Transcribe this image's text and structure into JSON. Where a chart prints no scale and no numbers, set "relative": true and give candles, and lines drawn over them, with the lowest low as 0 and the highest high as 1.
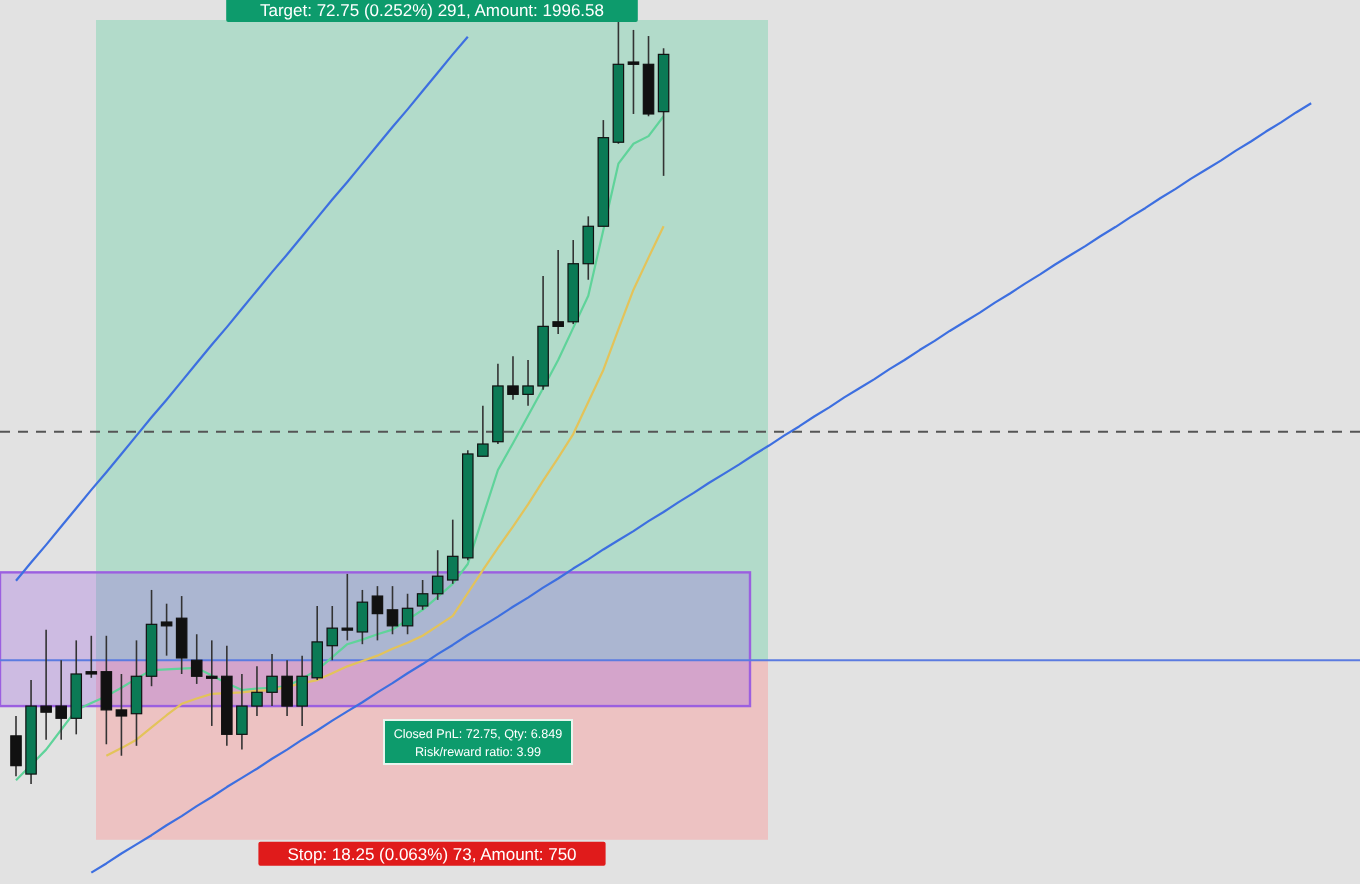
{
  "chart_data": {
    "type": "candlestick",
    "relative": true,
    "categories": [
      null,
      null,
      null,
      null,
      null,
      null,
      null,
      null,
      null,
      null,
      null,
      null,
      null,
      null,
      null,
      null,
      null,
      null,
      null,
      null,
      null,
      null,
      null,
      null,
      null,
      null,
      null,
      null,
      null,
      null,
      null,
      null,
      null,
      null,
      null,
      null,
      null,
      null,
      null,
      null,
      null,
      null,
      null,
      null,
      null,
      null,
      null,
      null,
      null,
      null,
      null,
      null,
      null,
      null,
      null,
      null,
      null,
      null,
      null,
      null,
      null,
      null,
      null,
      null,
      null,
      null,
      null,
      null,
      null,
      null,
      null,
      null,
      null,
      null,
      null,
      null,
      null,
      null,
      null,
      null,
      null,
      null,
      null,
      null,
      null,
      null,
      null,
      null,
      null,
      null
    ],
    "ohlc": [
      [
        0.063,
        0.089,
        0.01,
        0.024
      ],
      [
        0.013,
        0.136,
        0,
        0.102
      ],
      [
        0.102,
        0.202,
        0.058,
        0.094
      ],
      [
        0.102,
        0.162,
        0.058,
        0.086
      ],
      [
        0.086,
        0.188,
        0.065,
        0.144
      ],
      [
        0.147,
        0.194,
        0.139,
        0.144
      ],
      [
        0.147,
        0.194,
        0.052,
        0.097
      ],
      [
        0.097,
        0.144,
        0.037,
        0.089
      ],
      [
        0.092,
        0.188,
        0.05,
        0.141
      ],
      [
        0.141,
        0.254,
        0.128,
        0.209
      ],
      [
        0.212,
        0.236,
        0.168,
        0.207
      ],
      [
        0.217,
        0.246,
        0.144,
        0.165
      ],
      [
        0.162,
        0.196,
        0.131,
        0.141
      ],
      [
        0.141,
        0.188,
        0.076,
        0.139
      ],
      [
        0.141,
        0.181,
        0.05,
        0.065
      ],
      [
        0.065,
        0.144,
        0.045,
        0.102
      ],
      [
        0.102,
        0.154,
        0.089,
        0.12
      ],
      [
        0.12,
        0.17,
        0.102,
        0.141
      ],
      [
        0.141,
        0.162,
        0.089,
        0.102
      ],
      [
        0.102,
        0.168,
        0.076,
        0.141
      ],
      [
        0.139,
        0.233,
        0.136,
        0.186
      ],
      [
        0.181,
        0.233,
        0.162,
        0.204
      ],
      [
        0.204,
        0.275,
        0.188,
        0.202
      ],
      [
        0.199,
        0.254,
        0.183,
        0.238
      ],
      [
        0.246,
        0.259,
        0.188,
        0.223
      ],
      [
        0.228,
        0.259,
        0.196,
        0.207
      ],
      [
        0.207,
        0.249,
        0.196,
        0.23
      ],
      [
        0.233,
        0.267,
        0.228,
        0.249
      ],
      [
        0.249,
        0.306,
        0.241,
        0.272
      ],
      [
        0.267,
        0.346,
        0.262,
        0.298
      ],
      [
        0.296,
        0.437,
        0.293,
        0.432
      ],
      [
        0.429,
        0.495,
        0.429,
        0.445
      ],
      [
        0.448,
        0.55,
        0.445,
        0.521
      ],
      [
        0.521,
        0.56,
        0.503,
        0.51
      ],
      [
        0.51,
        0.555,
        0.495,
        0.521
      ],
      [
        0.521,
        0.665,
        0.516,
        0.599
      ],
      [
        0.605,
        0.699,
        0.589,
        0.599
      ],
      [
        0.605,
        0.712,
        0.602,
        0.681
      ],
      [
        0.681,
        0.743,
        0.66,
        0.73
      ],
      [
        0.73,
        0.869,
        0.73,
        0.846
      ],
      [
        0.84,
        1,
        0.838,
        0.942
      ],
      [
        0.945,
        0.987,
        0.877,
        0.942
      ],
      [
        0.942,
        0.979,
        0.874,
        0.877
      ],
      [
        0.88,
        0.963,
        0.796,
        0.955
      ],
      null,
      null,
      null,
      null,
      null,
      null,
      null,
      null,
      null,
      null,
      null,
      null,
      null,
      null,
      null,
      null,
      null,
      null,
      null,
      null,
      null,
      null,
      null,
      null,
      null,
      null,
      null,
      null,
      null,
      null,
      null,
      null,
      null,
      null,
      null,
      null,
      null,
      null,
      null,
      null,
      null,
      null,
      null,
      null,
      null,
      null
    ],
    "colors": [
      "#111111",
      "#0b7a55",
      "#111111",
      "#111111",
      "#0b7a55",
      "#111111",
      "#111111",
      "#111111",
      "#0b7a55",
      "#0b7a55",
      "#111111",
      "#111111",
      "#111111",
      "#111111",
      "#111111",
      "#0b7a55",
      "#0b7a55",
      "#0b7a55",
      "#111111",
      "#0b7a55",
      "#0b7a55",
      "#0b7a55",
      "#111111",
      "#0b7a55",
      "#111111",
      "#111111",
      "#0b7a55",
      "#0b7a55",
      "#0b7a55",
      "#0b7a55",
      "#0b7a55",
      "#0b7a55",
      "#0b7a55",
      "#111111",
      "#0b7a55",
      "#0b7a55",
      "#111111",
      "#0b7a55",
      "#0b7a55",
      "#0b7a55",
      "#0b7a55",
      "#111111",
      "#111111",
      "#0b7a55",
      null,
      null,
      null,
      null,
      null,
      null,
      null,
      null,
      null,
      null,
      null,
      null,
      null,
      null,
      null,
      null,
      null,
      null,
      null,
      null,
      null,
      null,
      null,
      null,
      null,
      null,
      null,
      null,
      null,
      null,
      null,
      null,
      null,
      null,
      null,
      null,
      null,
      null,
      null,
      null,
      null,
      null,
      null,
      null,
      null,
      null
    ],
    "series": [
      {
        "type": "line",
        "color": "#5fd39a",
        "values": [
          0.005,
          0.025,
          0.045,
          0.071,
          0.097,
          0.106,
          0.115,
          0.126,
          0.138,
          0.149,
          0.15,
          0.151,
          0.152,
          0.142,
          0.132,
          0.123,
          0.125,
          0.126,
          0.128,
          0.138,
          0.149,
          0.166,
          0.183,
          0.189,
          0.196,
          0.202,
          0.215,
          0.228,
          0.245,
          0.262,
          0.288,
          0.35,
          0.411,
          0.446,
          0.482,
          0.518,
          0.555,
          0.597,
          0.639,
          0.725,
          0.812,
          0.838,
          0.848,
          0.874,
          null,
          null,
          null,
          null,
          null,
          null,
          null,
          null,
          null,
          null,
          null,
          null,
          null,
          null,
          null,
          null,
          null,
          null,
          null,
          null,
          null,
          null,
          null,
          null,
          null,
          null,
          null,
          null,
          null,
          null,
          null,
          null,
          null,
          null,
          null,
          null,
          null,
          null,
          null,
          null,
          null,
          null,
          null,
          null,
          null,
          null
        ]
      },
      {
        "type": "line",
        "color": "#e3c35a",
        "values": [
          null,
          null,
          null,
          null,
          null,
          null,
          0.037,
          0.047,
          0.058,
          0.074,
          0.09,
          0.105,
          0.112,
          0.118,
          0.119,
          0.12,
          0.122,
          0.123,
          0.127,
          0.132,
          0.136,
          0.145,
          0.154,
          0.161,
          0.168,
          0.177,
          0.185,
          0.194,
          0.207,
          0.22,
          0.25,
          0.28,
          0.309,
          0.337,
          0.366,
          0.397,
          0.427,
          0.458,
          0.5,
          0.542,
          0.595,
          0.647,
          0.689,
          0.73,
          null,
          null,
          null,
          null,
          null,
          null,
          null,
          null,
          null,
          null,
          null,
          null,
          null,
          null,
          null,
          null,
          null,
          null,
          null,
          null,
          null,
          null,
          null,
          null,
          null,
          null,
          null,
          null,
          null,
          null,
          null,
          null,
          null,
          null,
          null,
          null,
          null,
          null,
          null,
          null,
          null,
          null,
          null,
          null,
          null,
          null
        ]
      },
      {
        "type": "line",
        "color": "#3d6fe0",
        "values": [
          0.266,
          0.29,
          0.313,
          0.337,
          0.361,
          0.385,
          0.408,
          0.432,
          0.456,
          0.48,
          0.503,
          0.527,
          0.551,
          0.575,
          0.598,
          0.622,
          0.646,
          0.67,
          0.693,
          0.717,
          0.741,
          0.765,
          0.788,
          0.812,
          0.836,
          0.86,
          0.883,
          0.907,
          0.931,
          0.955,
          0.978,
          null,
          null,
          null,
          null,
          null,
          null,
          null,
          null,
          null,
          null,
          null,
          null,
          null,
          null,
          null,
          null,
          null,
          null,
          null,
          null,
          null,
          null,
          null,
          null,
          null,
          null,
          null,
          null,
          null,
          null,
          null,
          null,
          null,
          null,
          null,
          null,
          null,
          null,
          null,
          null,
          null,
          null,
          null,
          null,
          null,
          null,
          null,
          null,
          null,
          null,
          null,
          null,
          null,
          null,
          null,
          null,
          null,
          null,
          null
        ]
      },
      {
        "type": "line",
        "color": "#3d6fe0",
        "values": [
          null,
          null,
          null,
          null,
          null,
          -0.116,
          -0.104,
          -0.091,
          -0.079,
          -0.067,
          -0.054,
          -0.042,
          -0.029,
          -0.017,
          -0.004,
          0.008,
          0.02,
          0.033,
          0.045,
          0.058,
          0.07,
          0.083,
          0.095,
          0.107,
          0.12,
          0.132,
          0.145,
          0.157,
          0.17,
          0.182,
          0.195,
          0.207,
          0.219,
          0.232,
          0.244,
          0.257,
          0.269,
          0.282,
          0.294,
          0.307,
          0.319,
          0.331,
          0.344,
          0.356,
          0.369,
          0.381,
          0.394,
          0.406,
          0.418,
          0.431,
          0.443,
          0.456,
          0.468,
          0.481,
          0.493,
          0.506,
          0.518,
          0.53,
          0.543,
          0.555,
          0.568,
          0.58,
          0.593,
          0.605,
          0.617,
          0.63,
          0.642,
          0.655,
          0.667,
          0.68,
          0.692,
          0.704,
          0.717,
          0.729,
          0.742,
          0.754,
          0.767,
          0.779,
          0.792,
          0.804,
          0.816,
          0.829,
          0.841,
          0.854,
          0.866,
          0.879,
          0.891,
          null,
          null,
          null
        ]
      }
    ],
    "bands": [
      {
        "axis": "y",
        "from": 0.162,
        "to": 1,
        "label": "Target: 72.75 (0.252%) 291, Amount: 1996.58",
        "color": "#a9d9c6"
      },
      {
        "axis": "y",
        "from": -0.073,
        "to": 0.162,
        "label": "Stop: 18.25 (0.063%) 73, Amount: 750",
        "color": "#eebcbc"
      },
      {
        "axis": "y",
        "from": 0.102,
        "to": 0.277,
        "color": "#9b5fe0"
      }
    ],
    "ref_lines": [
      {
        "axis": "y",
        "value": 0.162,
        "color": "#5b7be0",
        "line_style": "solid"
      },
      {
        "axis": "y",
        "value": 0.461,
        "color": "#555555",
        "line_style": "dashed"
      }
    ],
    "annotations": [
      "Closed PnL: 72.75, Qty: 6.849",
      "Risk/reward ratio: 3.99"
    ]
  }
}
